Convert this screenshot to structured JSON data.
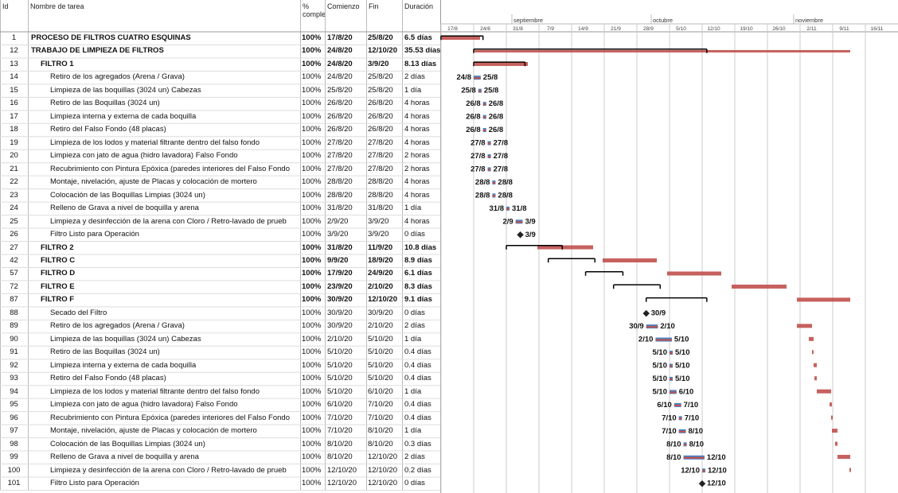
{
  "header": {
    "columns": {
      "id": "Id",
      "name": "Nombre de tarea",
      "pct": "% comple",
      "start": "Comienzo",
      "end": "Fin",
      "duration": "Duración"
    }
  },
  "timeline": {
    "months": [
      "septiembre",
      "octubre",
      "noviembre"
    ],
    "weeks": [
      "17/8",
      "24/8",
      "31/8",
      "7/9",
      "14/9",
      "21/9",
      "28/9",
      "5/10",
      "12/10",
      "19/10",
      "26/10",
      "2/11",
      "9/11",
      "16/11"
    ]
  },
  "rows": [
    {
      "id": "1",
      "name": "PROCESO DE FILTROS CUATRO ESQUINAS",
      "pct": "100%",
      "start": "17/8/20",
      "end": "25/8/20",
      "duration": "6.5 días",
      "summary": true,
      "level": 0
    },
    {
      "id": "12",
      "name": "TRABAJO DE LIMPIEZA DE FILTROS",
      "pct": "100%",
      "start": "24/8/20",
      "end": "12/10/20",
      "duration": "35.53 días",
      "summary": true,
      "level": 0
    },
    {
      "id": "13",
      "name": "FILTRO 1",
      "pct": "100%",
      "start": "24/8/20",
      "end": "3/9/20",
      "duration": "8.13 días",
      "summary": true,
      "level": 1
    },
    {
      "id": "14",
      "name": "Retiro de los agregados (Arena / Grava)",
      "pct": "100%",
      "start": "24/8/20",
      "end": "25/8/20",
      "duration": "2 días",
      "level": 2,
      "labels": [
        "24/8",
        "25/8"
      ]
    },
    {
      "id": "15",
      "name": "Limpieza de las boquillas (3024 un) Cabezas",
      "pct": "100%",
      "start": "25/8/20",
      "end": "25/8/20",
      "duration": "1 día",
      "level": 2,
      "labels": [
        "25/8",
        "25/8"
      ]
    },
    {
      "id": "16",
      "name": "Retiro de las Boquillas (3024 un)",
      "pct": "100%",
      "start": "26/8/20",
      "end": "26/8/20",
      "duration": "4 horas",
      "level": 2,
      "labels": [
        "26/8",
        "26/8"
      ]
    },
    {
      "id": "17",
      "name": "Limpieza interna y externa de cada boquilla",
      "pct": "100%",
      "start": "26/8/20",
      "end": "26/8/20",
      "duration": "4 horas",
      "level": 2,
      "labels": [
        "26/8",
        "26/8"
      ]
    },
    {
      "id": "18",
      "name": "Retiro del Falso Fondo (48 placas)",
      "pct": "100%",
      "start": "26/8/20",
      "end": "26/8/20",
      "duration": "4 horas",
      "level": 2,
      "labels": [
        "26/8",
        "26/8"
      ]
    },
    {
      "id": "19",
      "name": "Limpieza de los lodos y material filtrante dentro del falso fondo",
      "pct": "100%",
      "start": "27/8/20",
      "end": "27/8/20",
      "duration": "4 horas",
      "level": 2,
      "labels": [
        "27/8",
        "27/8"
      ]
    },
    {
      "id": "20",
      "name": "Limpieza con jato de agua (hidro lavadora) Falso Fondo",
      "pct": "100%",
      "start": "27/8/20",
      "end": "27/8/20",
      "duration": "2 horas",
      "level": 2,
      "labels": [
        "27/8",
        "27/8"
      ]
    },
    {
      "id": "21",
      "name": "Recubrimiento con Pintura Epóxica (paredes interiores del Falso Fondo",
      "pct": "100%",
      "start": "27/8/20",
      "end": "27/8/20",
      "duration": "2 horas",
      "level": 2,
      "labels": [
        "27/8",
        "27/8"
      ]
    },
    {
      "id": "22",
      "name": "Montaje, nivelación, ajuste de Placas y colocación de mortero",
      "pct": "100%",
      "start": "28/8/20",
      "end": "28/8/20",
      "duration": "4 horas",
      "level": 2,
      "labels": [
        "28/8",
        "28/8"
      ]
    },
    {
      "id": "23",
      "name": "Colocación de las Boquillas Limpias (3024 un)",
      "pct": "100%",
      "start": "28/8/20",
      "end": "28/8/20",
      "duration": "4 horas",
      "level": 2,
      "labels": [
        "28/8",
        "28/8"
      ]
    },
    {
      "id": "24",
      "name": "Relleno de Grava a nivel de boquilla y arena",
      "pct": "100%",
      "start": "31/8/20",
      "end": "31/8/20",
      "duration": "1 día",
      "level": 2,
      "labels": [
        "31/8",
        "31/8"
      ]
    },
    {
      "id": "25",
      "name": "Limpieza y desinfección de la arena con Cloro / Retro-lavado de prueb",
      "pct": "100%",
      "start": "2/9/20",
      "end": "3/9/20",
      "duration": "4 horas",
      "level": 2,
      "labels": [
        "2/9",
        "3/9"
      ]
    },
    {
      "id": "26",
      "name": "Filtro Listo para Operación",
      "pct": "100%",
      "start": "3/9/20",
      "end": "3/9/20",
      "duration": "0 días",
      "level": 2,
      "milestone": true,
      "labels": [
        "3/9"
      ]
    },
    {
      "id": "27",
      "name": "FILTRO 2",
      "pct": "100%",
      "start": "31/8/20",
      "end": "11/9/20",
      "duration": "10.8 días",
      "summary": true,
      "level": 1
    },
    {
      "id": "42",
      "name": "FILTRO C",
      "pct": "100%",
      "start": "9/9/20",
      "end": "18/9/20",
      "duration": "8.9 días",
      "summary": true,
      "level": 1
    },
    {
      "id": "57",
      "name": "FILTRO D",
      "pct": "100%",
      "start": "17/9/20",
      "end": "24/9/20",
      "duration": "6.1 días",
      "summary": true,
      "level": 1
    },
    {
      "id": "72",
      "name": "FILTRO E",
      "pct": "100%",
      "start": "23/9/20",
      "end": "2/10/20",
      "duration": "8.3 días",
      "summary": true,
      "level": 1
    },
    {
      "id": "87",
      "name": "FILTRO F",
      "pct": "100%",
      "start": "30/9/20",
      "end": "12/10/20",
      "duration": "9.1 días",
      "summary": true,
      "level": 1
    },
    {
      "id": "88",
      "name": "Secado del Filtro",
      "pct": "100%",
      "start": "30/9/20",
      "end": "30/9/20",
      "duration": "0 días",
      "level": 2,
      "milestone": true,
      "labels": [
        "30/9"
      ]
    },
    {
      "id": "89",
      "name": "Retiro de los agregados (Arena / Grava)",
      "pct": "100%",
      "start": "30/9/20",
      "end": "2/10/20",
      "duration": "2 días",
      "level": 2,
      "labels": [
        "30/9",
        "2/10"
      ]
    },
    {
      "id": "90",
      "name": "Limpieza de las boquillas (3024 un) Cabezas",
      "pct": "100%",
      "start": "2/10/20",
      "end": "5/10/20",
      "duration": "1 día",
      "level": 2,
      "labels": [
        "2/10",
        "5/10"
      ]
    },
    {
      "id": "91",
      "name": "Retiro de las Boquillas (3024 un)",
      "pct": "100%",
      "start": "5/10/20",
      "end": "5/10/20",
      "duration": "0.4 días",
      "level": 2,
      "labels": [
        "5/10",
        "5/10"
      ]
    },
    {
      "id": "92",
      "name": "Limpieza interna y externa de cada boquilla",
      "pct": "100%",
      "start": "5/10/20",
      "end": "5/10/20",
      "duration": "0.4 días",
      "level": 2,
      "labels": [
        "5/10",
        "5/10"
      ]
    },
    {
      "id": "93",
      "name": "Retiro del Falso Fondo (48 placas)",
      "pct": "100%",
      "start": "5/10/20",
      "end": "5/10/20",
      "duration": "0.4 días",
      "level": 2,
      "labels": [
        "5/10",
        "5/10"
      ]
    },
    {
      "id": "94",
      "name": "Limpieza de los lodos y material filtrante dentro del falso fondo",
      "pct": "100%",
      "start": "5/10/20",
      "end": "6/10/20",
      "duration": "1 día",
      "level": 2,
      "labels": [
        "5/10",
        "6/10"
      ]
    },
    {
      "id": "95",
      "name": "Limpieza con jato de agua (hidro lavadora) Falso Fondo",
      "pct": "100%",
      "start": "6/10/20",
      "end": "7/10/20",
      "duration": "0.4 días",
      "level": 2,
      "labels": [
        "6/10",
        "7/10"
      ]
    },
    {
      "id": "96",
      "name": "Recubrimiento con Pintura Epóxica (paredes interiores del Falso Fondo",
      "pct": "100%",
      "start": "7/10/20",
      "end": "7/10/20",
      "duration": "0.4 días",
      "level": 2,
      "labels": [
        "7/10",
        "7/10"
      ]
    },
    {
      "id": "97",
      "name": "Montaje, nivelación, ajuste de Placas y colocación de mortero",
      "pct": "100%",
      "start": "7/10/20",
      "end": "8/10/20",
      "duration": "1 día",
      "level": 2,
      "labels": [
        "7/10",
        "8/10"
      ]
    },
    {
      "id": "98",
      "name": "Colocación de las Boquillas Limpias (3024 un)",
      "pct": "100%",
      "start": "8/10/20",
      "end": "8/10/20",
      "duration": "0.3 días",
      "level": 2,
      "labels": [
        "8/10",
        "8/10"
      ]
    },
    {
      "id": "99",
      "name": "Relleno de Grava a nivel de boquilla y arena",
      "pct": "100%",
      "start": "8/10/20",
      "end": "12/10/20",
      "duration": "2 días",
      "level": 2,
      "labels": [
        "8/10",
        "12/10"
      ]
    },
    {
      "id": "100",
      "name": "Limpieza y desinfección de la arena con Cloro / Retro-lavado de prueb",
      "pct": "100%",
      "start": "12/10/20",
      "end": "12/10/20",
      "duration": "0.2 días",
      "level": 2,
      "labels": [
        "12/10",
        "12/10"
      ]
    },
    {
      "id": "101",
      "name": "Filtro Listo para Operación",
      "pct": "100%",
      "start": "12/10/20",
      "end": "12/10/20",
      "duration": "0 días",
      "level": 2,
      "milestone": true,
      "labels": [
        "12/10"
      ]
    }
  ]
}
